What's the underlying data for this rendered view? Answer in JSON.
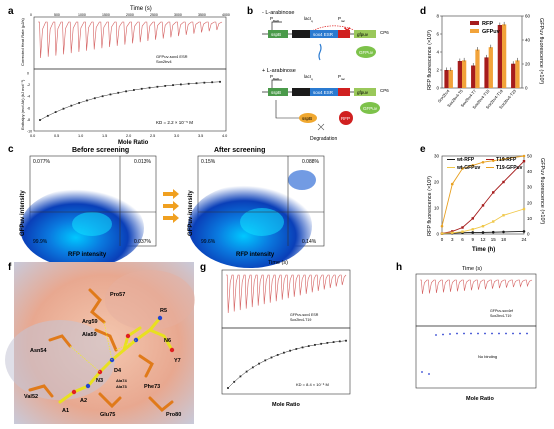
{
  "panels": {
    "a": {
      "letter": "a",
      "top_axis": "Time (s)",
      "top_ticks": [
        "0",
        "500",
        "1000",
        "1500",
        "2000",
        "2500",
        "3000",
        "3500",
        "4000"
      ],
      "top_ylabel": "Corrected Heat Rate (µJ/s)",
      "legend1": "GFPuv-sox4 ESR",
      "legend2": "Sox2bv4",
      "bottom_ylabel": "Enthalpy (mol Ab) (kJ mol⁻¹)",
      "kd": "K<sub>D</sub> = 2.2 × 10⁻⁵ M",
      "kd_text": "KD = 2.2 × 10⁻⁵ M",
      "xlabel": "Mole Ratio",
      "x_ticks": [
        "0.0",
        "0.5",
        "1.0",
        "1.5",
        "2.0",
        "2.5",
        "3.0",
        "3.5",
        "4.0"
      ],
      "y_ticks": [
        "0",
        "-2",
        "-4",
        "-6",
        "-8",
        "-10"
      ]
    },
    "b": {
      "letter": "b",
      "minus_ara": "- L-arabinose",
      "plus_ara": "+ L-arabinose",
      "pbad": "P<sub>BAD</sub>",
      "sspB": "sspB",
      "lacI": "lacI<sub>q</sub>",
      "ptac": "P<sub>tac</sub>",
      "cp6": "CP6",
      "sox4": "sox4 ESR",
      "sspB_label": "sspB",
      "rfp": "RFP",
      "gfpuv": "gfpuv",
      "gfpuv_protein": "GFPuv",
      "rfp_protein": "RFP",
      "degradation": "Degradation"
    },
    "c": {
      "letter": "c",
      "left_title": "Before screening",
      "right_title": "After screening",
      "ylabel": "GFPuv intensity",
      "xlabel": "RFP intensity",
      "left_q": [
        "0.077%",
        "0.013%",
        "99.9%",
        "0.037%"
      ],
      "right_q": [
        "0.15%",
        "0.088%",
        "99.6%",
        "0.14%"
      ]
    },
    "d": {
      "letter": "d",
      "ylabel_left": "RFP fluorescence (×10³)",
      "ylabel_right": "GFPuv fluorescence (×10³)"
    },
    "e": {
      "letter": "e",
      "ylabel_left": "RFP fluorescence (×10³)",
      "ylabel_right": "GFPuv fluorescence (×10³)",
      "xlabel": "Time (h)"
    },
    "f": {
      "letter": "f",
      "residues": [
        "Pro57",
        "Arg59",
        "Ala59",
        "Asn54",
        "Val52",
        "Glu75",
        "Pro80",
        "Phe73",
        "R5",
        "N6",
        "Y7",
        "D4",
        "N3",
        "A2",
        "A1",
        "Ala74",
        "Ala73"
      ]
    },
    "g": {
      "letter": "g",
      "top_axis": "Time (s)",
      "legend1": "GFPuv-sox4 ESR",
      "legend2": "Sox2bv4-T19",
      "kd": "K<sub>D</sub> = 8.4 × 10⁻⁶ M",
      "kd_text": "KD = 8.4 × 10⁻⁶ M",
      "xlabel": "Mole Ratio"
    },
    "h": {
      "letter": "h",
      "top_axis": "Time (s)",
      "legend1": "GFPuv-sox4ef",
      "legend2": "Sox2bv4-T19",
      "note": "No binding",
      "xlabel": "Mole Ratio"
    }
  },
  "chart_data": [
    {
      "type": "bar",
      "panel": "d",
      "categories": [
        "Sox2bv4",
        "Sox2bv4-T5",
        "Sox2bv4-T7",
        "Sox2bv4-T15",
        "Sox2bv4-T19",
        "Sox2bv4-T23"
      ],
      "series": [
        {
          "name": "RFP",
          "axis": "left",
          "color": "#a61c1c",
          "values": [
            2.0,
            3.0,
            2.5,
            3.4,
            7.0,
            2.7
          ]
        },
        {
          "name": "GFPuv",
          "axis": "right",
          "color": "#f2a33a",
          "values": [
            15,
            23,
            32,
            34,
            53,
            23
          ]
        }
      ],
      "ylim_left": [
        0,
        8
      ],
      "ylim_right": [
        0,
        60
      ],
      "y_ticks_left": [
        0,
        2,
        4,
        6,
        8
      ],
      "y_ticks_right": [
        0,
        20,
        40,
        60
      ]
    },
    {
      "type": "line",
      "panel": "e",
      "x": [
        0,
        3,
        6,
        9,
        12,
        15,
        18,
        24
      ],
      "series": [
        {
          "name": "wt-RFP",
          "axis": "left",
          "color": "#1a1a1a",
          "values": [
            0.1,
            0.3,
            0.5,
            0.6,
            0.6,
            0.7,
            0.8,
            1.0
          ]
        },
        {
          "name": "T19-RFP",
          "axis": "left",
          "color": "#a61c1c",
          "values": [
            0.2,
            1.0,
            2.5,
            6.0,
            11.0,
            16.0,
            20.0,
            28.0
          ]
        },
        {
          "name": "wt-GFPuv",
          "axis": "right",
          "color": "#f0c84a",
          "values": [
            0.3,
            0.8,
            1.5,
            3.0,
            5.0,
            8.0,
            12.0,
            16.0
          ]
        },
        {
          "name": "T19-GFPuv",
          "axis": "right",
          "color": "#e8a020",
          "values": [
            5,
            32,
            42,
            44,
            46,
            47,
            48,
            50
          ]
        }
      ],
      "ylim_left": [
        0,
        30
      ],
      "ylim_right": [
        0,
        50
      ],
      "y_ticks_left": [
        0,
        10,
        20,
        30
      ],
      "y_ticks_right": [
        0,
        10,
        20,
        30,
        40,
        50
      ],
      "xlabel": "Time (h)"
    }
  ]
}
